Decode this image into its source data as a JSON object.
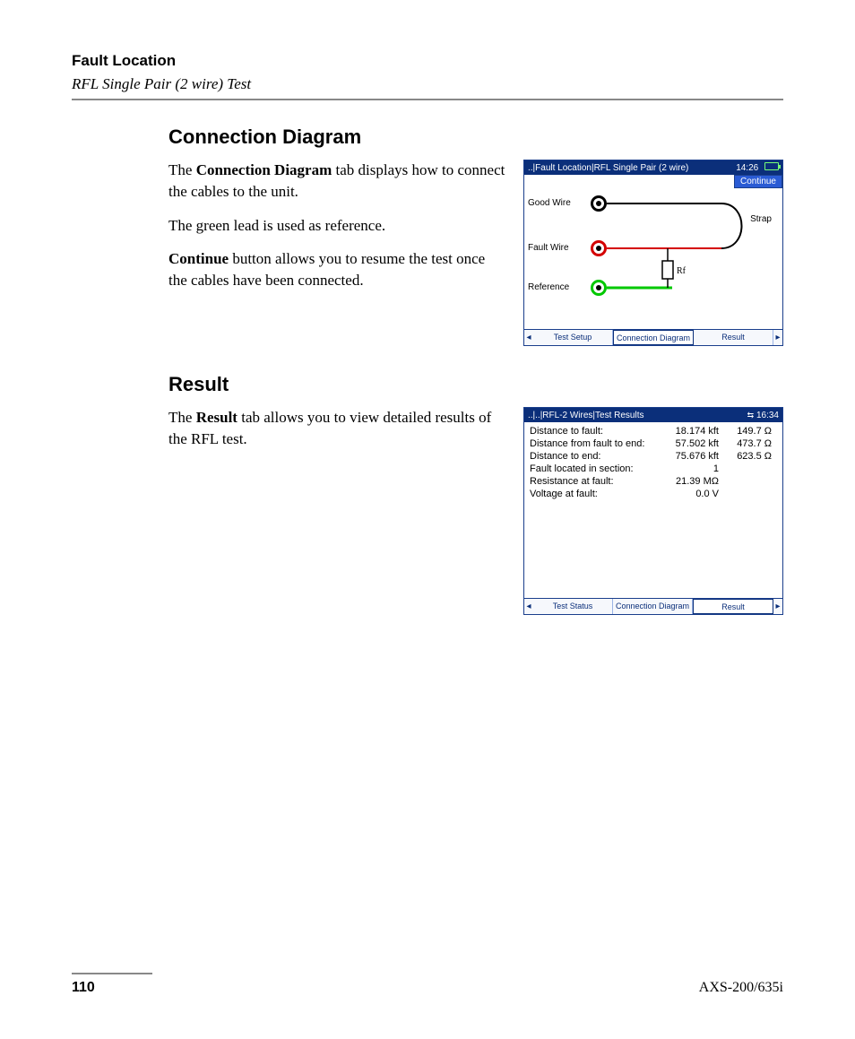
{
  "header": {
    "title": "Fault Location",
    "subtitle": "RFL Single Pair (2 wire) Test"
  },
  "section1": {
    "heading": "Connection Diagram",
    "p1a": "The ",
    "p1b": "Connection Diagram",
    "p1c": " tab displays how to connect the cables to the unit.",
    "p2": "The green lead is used as reference.",
    "p3a": "Continue",
    "p3b": " button allows you to resume the test once the cables have been connected."
  },
  "section2": {
    "heading": "Result",
    "p1a": "The ",
    "p1b": "Result",
    "p1c": " tab allows you to view detailed results of the RFL test."
  },
  "device1": {
    "titlebar": "..|Fault Location|RFL Single Pair (2 wire)",
    "time": "14:26",
    "continue": "Continue",
    "labels": {
      "good": "Good Wire",
      "fault": "Fault Wire",
      "ref": "Reference",
      "strap": "Strap",
      "rf": "Rf"
    },
    "colors": {
      "good": "#000000",
      "fault": "#d40000",
      "ref": "#00c800",
      "strap": "#000000"
    },
    "tabs": [
      "Test Setup",
      "Connection Diagram",
      "Result"
    ],
    "selected_tab": 1
  },
  "device2": {
    "titlebar": "..|..|RFL-2 Wires|Test Results",
    "time": "16:34",
    "rows": [
      {
        "label": "Distance to fault:",
        "v1": "18.174 kft",
        "v2": "149.7 Ω"
      },
      {
        "label": "Distance from fault to end:",
        "v1": "57.502 kft",
        "v2": "473.7 Ω"
      },
      {
        "label": "Distance to end:",
        "v1": "75.676 kft",
        "v2": "623.5 Ω"
      },
      {
        "label": "Fault located in section:",
        "v1": "1",
        "v2": ""
      },
      {
        "label": "Resistance at fault:",
        "v1": "21.39 MΩ",
        "v2": ""
      },
      {
        "label": "Voltage at fault:",
        "v1": "0.0 V",
        "v2": ""
      }
    ],
    "tabs": [
      "Test Status",
      "Connection Diagram",
      "Result"
    ],
    "selected_tab": 2
  },
  "footer": {
    "page": "110",
    "model": "AXS-200/635i"
  }
}
